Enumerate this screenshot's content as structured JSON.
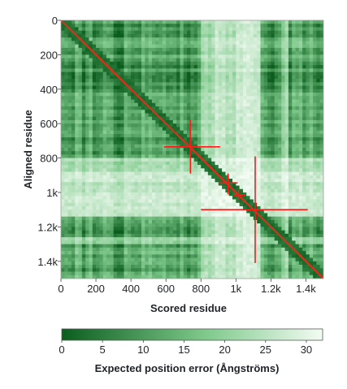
{
  "chart_data": {
    "type": "heatmap",
    "xlabel": "Scored residue",
    "ylabel": "Aligned residue",
    "x_range": [
      0,
      1500
    ],
    "y_range": [
      0,
      1500
    ],
    "x_ticks": [
      {
        "value": 0,
        "label": "0"
      },
      {
        "value": 200,
        "label": "200"
      },
      {
        "value": 400,
        "label": "400"
      },
      {
        "value": 600,
        "label": "600"
      },
      {
        "value": 800,
        "label": "800"
      },
      {
        "value": 1000,
        "label": "1k"
      },
      {
        "value": 1200,
        "label": "1.2k"
      },
      {
        "value": 1400,
        "label": "1.4k"
      }
    ],
    "y_ticks": [
      {
        "value": 0,
        "label": "0"
      },
      {
        "value": 200,
        "label": "200"
      },
      {
        "value": 400,
        "label": "400"
      },
      {
        "value": 600,
        "label": "600"
      },
      {
        "value": 800,
        "label": "800"
      },
      {
        "value": 1000,
        "label": "1k"
      },
      {
        "value": 1200,
        "label": "1.2k"
      },
      {
        "value": 1400,
        "label": "1.4k"
      }
    ],
    "segments": [
      {
        "start": 0,
        "end": 260,
        "confidence": 0.78
      },
      {
        "start": 260,
        "end": 420,
        "confidence": 0.9
      },
      {
        "start": 420,
        "end": 560,
        "confidence": 0.72
      },
      {
        "start": 560,
        "end": 800,
        "confidence": 0.8
      },
      {
        "start": 800,
        "end": 880,
        "confidence": 0.35
      },
      {
        "start": 880,
        "end": 935,
        "confidence": 0.2
      },
      {
        "start": 935,
        "end": 1010,
        "confidence": 0.28
      },
      {
        "start": 1010,
        "end": 1140,
        "confidence": 0.18
      },
      {
        "start": 1140,
        "end": 1260,
        "confidence": 0.78
      },
      {
        "start": 1260,
        "end": 1300,
        "confidence": 0.4
      },
      {
        "start": 1300,
        "end": 1500,
        "confidence": 0.75
      }
    ],
    "diagonal_line": {
      "from": 0,
      "to": 1500,
      "color": "#d4321c"
    },
    "markers": [
      {
        "x": 740,
        "y": 735,
        "x_extent": [
          590,
          910
        ],
        "y_extent": [
          580,
          890
        ]
      },
      {
        "x": 955,
        "y": 945,
        "x_extent": [
          900,
          1010
        ],
        "y_extent": [
          890,
          1010
        ]
      },
      {
        "x": 1015,
        "y": 1015,
        "x_extent": [
          985,
          1050
        ],
        "y_extent": [
          985,
          1045
        ]
      },
      {
        "x": 1110,
        "y": 1100,
        "x_extent": [
          800,
          1410
        ],
        "y_extent": [
          790,
          1410
        ]
      }
    ],
    "marker_color": "#ff1a1a",
    "colorbar": {
      "title": "Expected position error (Ångströms)",
      "range": [
        0,
        32
      ],
      "ticks": [
        {
          "value": 0,
          "label": "0"
        },
        {
          "value": 5,
          "label": "5"
        },
        {
          "value": 10,
          "label": "10"
        },
        {
          "value": 15,
          "label": "15"
        },
        {
          "value": 20,
          "label": "20"
        },
        {
          "value": 25,
          "label": "25"
        },
        {
          "value": 30,
          "label": "30"
        }
      ],
      "color_low": "#0b5d1e",
      "color_mid": "#7ec98b",
      "color_high": "#f3fbf3"
    }
  }
}
